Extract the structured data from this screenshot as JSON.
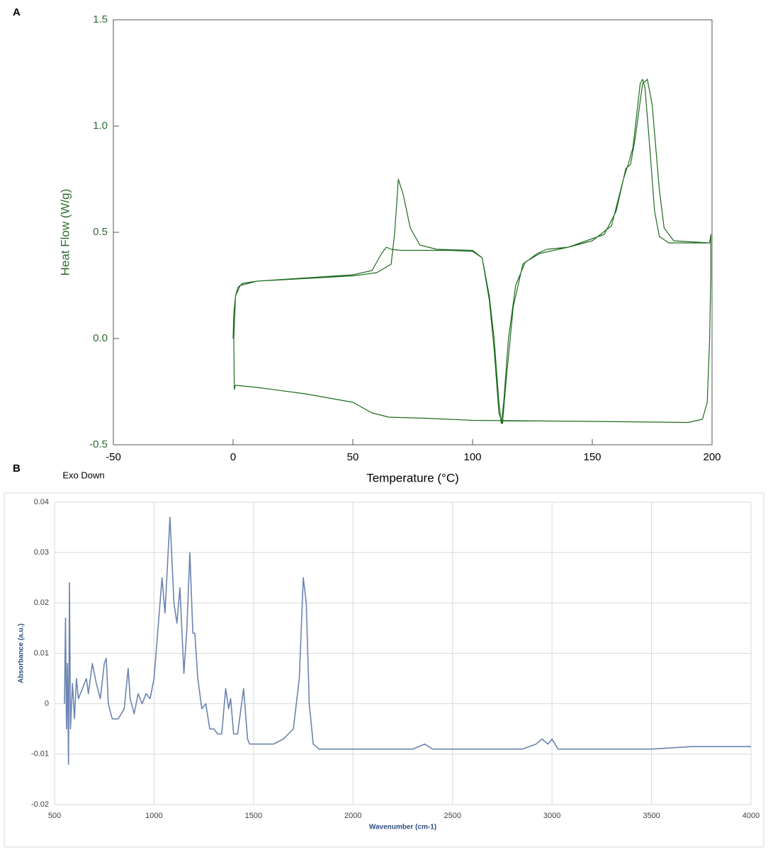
{
  "chart_data": [
    {
      "type": "line",
      "panel_label": "A",
      "annotation": "Exo Down",
      "xlabel": "Temperature (°C)",
      "ylabel": "Heat Flow (W/g)",
      "xlim": [
        -50,
        200
      ],
      "ylim": [
        -0.5,
        1.5
      ],
      "xticks": [
        -50,
        0,
        50,
        100,
        150,
        200
      ],
      "yticks": [
        -0.5,
        {
          "value": 0,
          "label": "0.0"
        },
        0.5,
        {
          "value": 1,
          "label": "1.0"
        },
        1.5
      ],
      "grid": false,
      "x": [
        0,
        0.3,
        1,
        2,
        4,
        10,
        30,
        50,
        58,
        62,
        64,
        66,
        70,
        90,
        100,
        104,
        107,
        109,
        111,
        112,
        113,
        115,
        118,
        122,
        128,
        140,
        150,
        158,
        163,
        165,
        167,
        169,
        170,
        171,
        172,
        174,
        176,
        178,
        182,
        199,
        199.5,
        199.5,
        199,
        198,
        196,
        190,
        150,
        100,
        80,
        65,
        58,
        50,
        30,
        10,
        1,
        0.5,
        0.3,
        1,
        3,
        10,
        50,
        60,
        66,
        67.5,
        69,
        71,
        74,
        78,
        85,
        100,
        104,
        107,
        109,
        111,
        112.5,
        114,
        117,
        121,
        127,
        131,
        140,
        155,
        160,
        164,
        166,
        168,
        171,
        173,
        175,
        178,
        180,
        184,
        199
      ],
      "series": [
        {
          "color": "#1e6b1e",
          "values": [
            0,
            0.12,
            0.2,
            0.24,
            0.26,
            0.27,
            0.285,
            0.3,
            0.32,
            0.4,
            0.43,
            0.42,
            0.415,
            0.415,
            0.41,
            0.38,
            0.2,
            0,
            -0.3,
            -0.4,
            -0.3,
            0,
            0.25,
            0.36,
            0.4,
            0.43,
            0.46,
            0.53,
            0.75,
            0.82,
            0.9,
            1.1,
            1.2,
            1.22,
            1.18,
            0.9,
            0.6,
            0.48,
            0.45,
            0.45,
            0.49,
            0.3,
            0,
            -0.3,
            -0.38,
            -0.395,
            -0.39,
            -0.385,
            -0.375,
            -0.37,
            -0.35,
            -0.3,
            -0.26,
            -0.23,
            -0.22,
            -0.24,
            0,
            0.2,
            0.25,
            0.27,
            0.295,
            0.31,
            0.35,
            0.5,
            0.75,
            0.68,
            0.52,
            0.44,
            0.42,
            0.415,
            0.38,
            0.18,
            -0.05,
            -0.35,
            -0.4,
            -0.2,
            0.15,
            0.35,
            0.4,
            0.42,
            0.43,
            0.49,
            0.6,
            0.8,
            0.82,
            0.95,
            1.2,
            1.22,
            1.1,
            0.7,
            0.52,
            0.46,
            0.45
          ]
        }
      ]
    },
    {
      "type": "line",
      "panel_label": "B",
      "xlabel": "Wavenumber (cm-1)",
      "ylabel": "Absorbance (a.u.)",
      "xlim": [
        500,
        4000
      ],
      "ylim": [
        -0.02,
        0.04
      ],
      "xticks": [
        500,
        1000,
        1500,
        2000,
        2500,
        3000,
        3500,
        4000
      ],
      "yticks": [
        -0.02,
        -0.01,
        0,
        0.01,
        0.02,
        0.03,
        0.04
      ],
      "grid": true,
      "x": [
        550,
        555,
        560,
        565,
        570,
        575,
        580,
        590,
        600,
        610,
        620,
        640,
        660,
        670,
        690,
        710,
        730,
        750,
        760,
        770,
        790,
        820,
        850,
        870,
        880,
        900,
        920,
        940,
        960,
        980,
        1000,
        1020,
        1040,
        1055,
        1080,
        1100,
        1115,
        1130,
        1150,
        1165,
        1180,
        1195,
        1205,
        1220,
        1240,
        1260,
        1280,
        1300,
        1320,
        1340,
        1360,
        1375,
        1385,
        1400,
        1420,
        1450,
        1470,
        1480,
        1550,
        1600,
        1650,
        1700,
        1730,
        1750,
        1765,
        1780,
        1800,
        1830,
        2000,
        2300,
        2360,
        2400,
        2850,
        2920,
        2950,
        2980,
        3000,
        3030,
        3500,
        3700,
        4000
      ],
      "series": [
        {
          "color": "#6b84b0",
          "values": [
            0,
            0.017,
            -0.005,
            0.008,
            -0.012,
            0.024,
            -0.005,
            0.004,
            -0.003,
            0.005,
            0.001,
            0.003,
            0.005,
            0.002,
            0.008,
            0.004,
            0.001,
            0.008,
            0.009,
            0,
            -0.003,
            -0.003,
            -0.001,
            0.007,
            0.001,
            -0.002,
            0.002,
            0,
            0.002,
            0.001,
            0.005,
            0.015,
            0.025,
            0.018,
            0.037,
            0.02,
            0.016,
            0.023,
            0.006,
            0.015,
            0.03,
            0.014,
            0.014,
            0.005,
            -0.001,
            0,
            -0.005,
            -0.005,
            -0.006,
            -0.006,
            0.003,
            -0.001,
            0.001,
            -0.006,
            -0.006,
            0.003,
            -0.007,
            -0.008,
            -0.008,
            -0.008,
            -0.007,
            -0.005,
            0.005,
            0.025,
            0.02,
            0,
            -0.008,
            -0.009,
            -0.009,
            -0.009,
            -0.008,
            -0.009,
            -0.009,
            -0.008,
            -0.007,
            -0.008,
            -0.007,
            -0.009,
            -0.009,
            -0.0085,
            -0.0085
          ]
        }
      ]
    }
  ]
}
